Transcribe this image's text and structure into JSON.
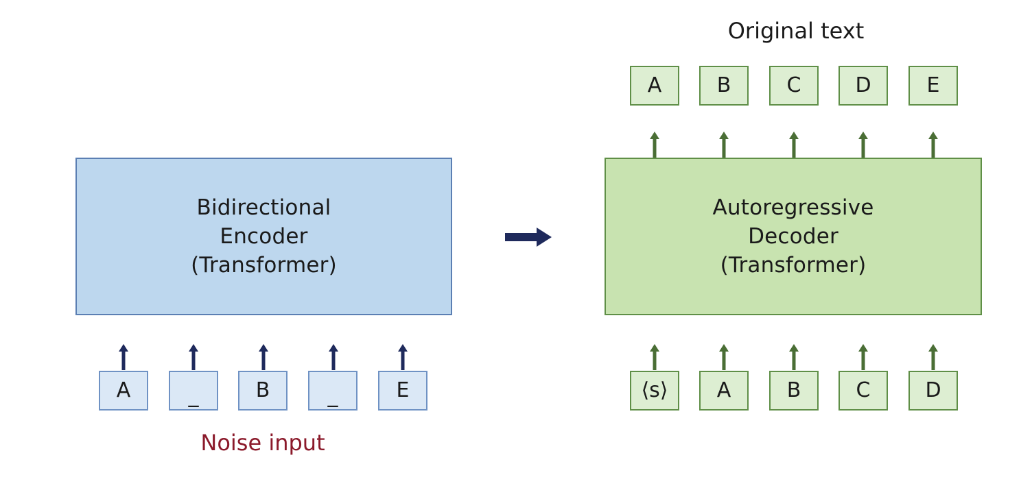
{
  "encoder": {
    "lines": [
      "Bidirectional",
      "Encoder",
      "(Transformer)"
    ]
  },
  "decoder": {
    "lines": [
      "Autoregressive",
      "Decoder",
      "(Transformer)"
    ]
  },
  "noise_input": {
    "label": "Noise input",
    "tokens": [
      "A",
      "_",
      "B",
      "_",
      "E"
    ]
  },
  "decoder_input": {
    "tokens": [
      "⟨s⟩",
      "A",
      "B",
      "C",
      "D"
    ]
  },
  "original_text": {
    "label": "Original text",
    "tokens": [
      "A",
      "B",
      "C",
      "D",
      "E"
    ]
  },
  "colors": {
    "encoder_fill": "#bdd7ee",
    "decoder_fill": "#c8e3b0",
    "encoder_arrow": "#1f2a5c",
    "decoder_arrow": "#4a6e35",
    "noise_label": "#8b1a2b"
  },
  "icons": {
    "flow_arrow": "right-arrow-icon",
    "token_arrow": "up-arrow-icon"
  }
}
